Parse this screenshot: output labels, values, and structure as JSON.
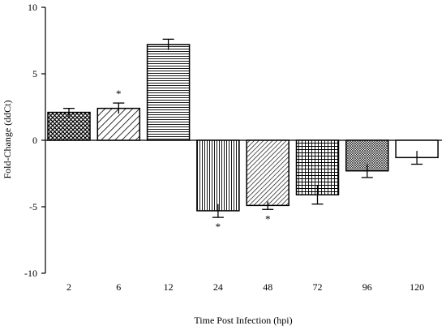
{
  "chart_data": {
    "type": "bar",
    "title": "",
    "xlabel": "Time Post Infection (hpi)",
    "ylabel": "Fold-Change (ddCt)",
    "ylim": [
      -10,
      10
    ],
    "yticks": [
      10,
      5,
      0,
      -5,
      -10
    ],
    "ytick_labels": [
      "10",
      "5",
      "0",
      "-5",
      "-10"
    ],
    "categories": [
      "2",
      "6",
      "12",
      "24",
      "48",
      "72",
      "96",
      "120"
    ],
    "values": [
      2.1,
      2.4,
      7.2,
      -5.3,
      -4.9,
      -4.1,
      -2.3,
      -1.3
    ],
    "errors": [
      0.3,
      0.4,
      0.4,
      0.5,
      0.3,
      0.7,
      0.5,
      0.5
    ],
    "significant": [
      false,
      true,
      false,
      true,
      true,
      false,
      false,
      false
    ],
    "significance_marker": "*",
    "patterns": [
      "crosshatch",
      "diagonal-wide",
      "horizontal",
      "vertical",
      "diagonal-dense",
      "grid",
      "diagonal-crosshatch",
      "none"
    ],
    "grid": false,
    "legend": "none"
  }
}
